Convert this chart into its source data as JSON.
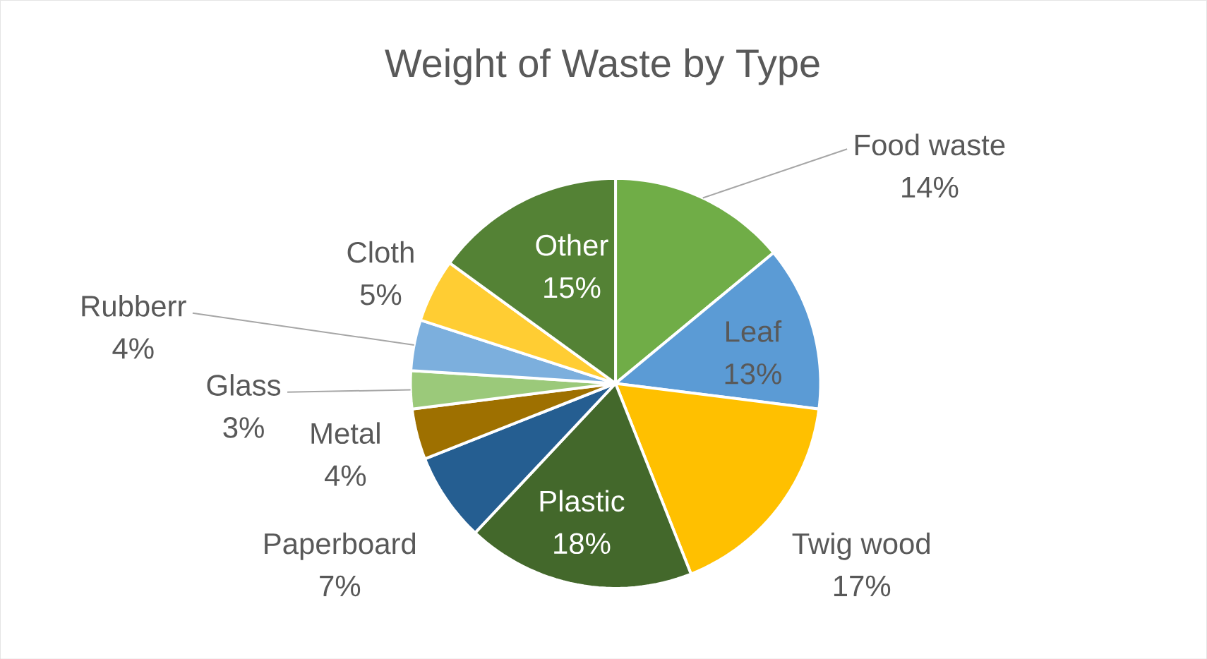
{
  "chart_data": {
    "type": "pie",
    "title": "Weight of Waste by Type",
    "categories": [
      "Food waste",
      "Leaf",
      "Twig wood",
      "Plastic",
      "Paperboard",
      "Metal",
      "Glass",
      "Rubberr",
      "Cloth",
      "Other"
    ],
    "values": [
      14,
      13,
      17,
      18,
      7,
      4,
      3,
      4,
      5,
      15
    ],
    "value_labels": [
      "14%",
      "13%",
      "17%",
      "18%",
      "7%",
      "4%",
      "3%",
      "4%",
      "5%",
      "15%"
    ],
    "colors": [
      "#70ad47",
      "#5b9bd5",
      "#ffc000",
      "#43682b",
      "#255e91",
      "#9e7000",
      "#9bc97a",
      "#7cafdd",
      "#ffcd33",
      "#548235"
    ]
  }
}
